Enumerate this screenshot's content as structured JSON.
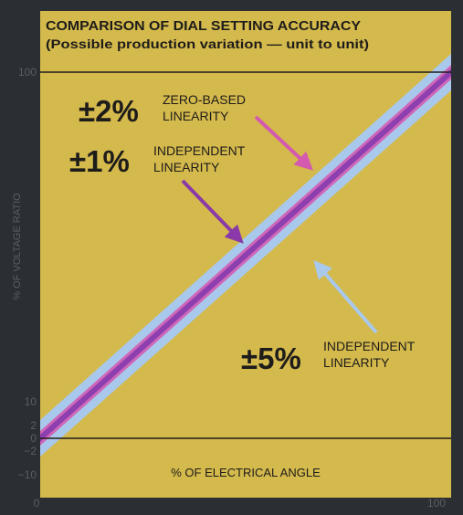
{
  "chart_data": {
    "type": "area",
    "title": "COMPARISON OF DIAL SETTING ACCURACY",
    "subtitle": "(Possible production variation — unit to unit)",
    "xlabel": "% OF ELECTRICAL ANGLE",
    "ylabel": "% OF VOLTAGE RATIO",
    "xlim": [
      0,
      100
    ],
    "ylim": [
      -10,
      100
    ],
    "x_ticks": [
      "0",
      "100"
    ],
    "y_ticks": [
      {
        "label": "100",
        "value": 100
      },
      {
        "label": "10",
        "value": 10
      },
      {
        "label": "2",
        "value": 2
      },
      {
        "label": "0",
        "value": 0
      },
      {
        "label": "−2",
        "value": -2
      },
      {
        "label": "−10",
        "value": -10
      }
    ],
    "reference_lines": [
      100,
      0
    ],
    "ideal_line": {
      "x": [
        0,
        100
      ],
      "y": [
        0,
        100
      ]
    },
    "bands": [
      {
        "tolerance": 5,
        "name": "±5%",
        "label": "INDEPENDENT\nLINEARITY",
        "type": "independent",
        "color": "#a9c9ec"
      },
      {
        "tolerance": 2,
        "name": "±2%",
        "label": "ZERO-BASED\nLINEARITY",
        "type": "zero-based",
        "color": "#cf67b8"
      },
      {
        "tolerance": 1,
        "name": "±1%",
        "label": "INDEPENDENT\nLINEARITY",
        "type": "independent",
        "color": "#8d3fb0"
      }
    ],
    "colors": {
      "background": "#d4b94c",
      "frame": "#2b2e33",
      "text": "#1e1c1a",
      "axis_text": "#5b5e64",
      "arrow_5": "#a9c9ec",
      "arrow_2": "#d45ab0",
      "arrow_1": "#8a3aa8"
    }
  }
}
